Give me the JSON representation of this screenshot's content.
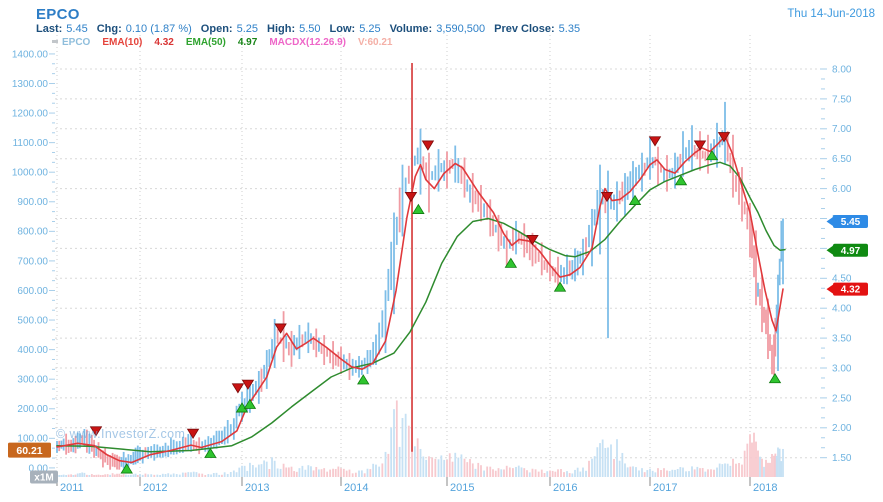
{
  "header": {
    "symbol": "EPCO",
    "date": "Thu 14-Jun-2018",
    "stats": [
      {
        "label": "Last:",
        "value": "5.45"
      },
      {
        "label": "Chg:",
        "value": "0.10 (1.87 %)"
      },
      {
        "label": "Open:",
        "value": "5.25"
      },
      {
        "label": "High:",
        "value": "5.50"
      },
      {
        "label": "Low:",
        "value": "5.25"
      },
      {
        "label": "Volume:",
        "value": "3,590,500"
      },
      {
        "label": "Prev Close:",
        "value": "5.35"
      }
    ],
    "legend": [
      {
        "text": "EPCO",
        "color": "#8fbedc"
      },
      {
        "text": "EMA(10)",
        "color": "#e5443c"
      },
      {
        "text": "4.32",
        "color": "#d93434"
      },
      {
        "text": "EMA(50)",
        "color": "#2fa32f"
      },
      {
        "text": "4.97",
        "color": "#168316"
      },
      {
        "text": "MACDX(12.26.9)",
        "color": "#ee66c8"
      },
      {
        "text": "V:60.21",
        "color": "#f4afa6"
      }
    ]
  },
  "watermark": "© www.InvestorZ.com",
  "colors": {
    "up": "#7ebee8",
    "down": "#f09ba3",
    "forced_red": "#d94b4b",
    "ema10": "#e0393c",
    "ema50": "#2e8b2e",
    "vol_up": "#c6e1f4",
    "vol_down": "#f7c9ce",
    "grid": "#d8d8d8",
    "vgrid": "#cfcfcf",
    "tick": "#a9cfea",
    "axis_text": "#6fb3e0",
    "year_text": "#55a4dc",
    "badge_last": "#2e8be6",
    "badge_ema50": "#0f8a12",
    "badge_ema10": "#e31212",
    "badge_left": "#c8671e",
    "badge_unit": "#a7b1bb",
    "buy": "#2fc42f",
    "buy_edge": "#0e7a0e",
    "sell": "#c81414",
    "sell_edge": "#7a0a0a"
  },
  "chart_data": {
    "type": "candlestick",
    "symbol": "EPCO",
    "x_axis": {
      "tick_labels": [
        "2011",
        "2012",
        "2013",
        "2014",
        "2015",
        "2016",
        "2017",
        "2018"
      ]
    },
    "right_axis": {
      "min": 1.5,
      "max": 8.0,
      "step": 0.5
    },
    "left_axis": {
      "min": 0,
      "max": 1400,
      "step": 100,
      "unit_badge": "x1M"
    },
    "badges": {
      "last": {
        "value": "5.45",
        "price": 5.45
      },
      "ema50": {
        "value": "4.97",
        "price": 4.97
      },
      "ema10": {
        "value": "4.32",
        "price": 4.32
      },
      "left_indicator": {
        "value": "60.21",
        "axis_value": 60.21
      }
    },
    "bars": [
      [
        2011.0,
        1.58,
        1.78,
        1.7
      ],
      [
        2011.08,
        1.62,
        1.82,
        1.72
      ],
      [
        2011.17,
        1.6,
        1.8,
        1.68
      ],
      [
        2011.25,
        1.65,
        1.92,
        1.78
      ],
      [
        2011.33,
        1.68,
        1.98,
        1.82
      ],
      [
        2011.42,
        1.6,
        1.88,
        1.7
      ],
      [
        2011.5,
        1.5,
        1.76,
        1.58
      ],
      [
        2011.58,
        1.42,
        1.66,
        1.5
      ],
      [
        2011.67,
        1.35,
        1.58,
        1.45
      ],
      [
        2011.75,
        1.3,
        1.52,
        1.4
      ],
      [
        2011.83,
        1.28,
        1.5,
        1.42
      ],
      [
        2011.92,
        1.38,
        1.6,
        1.5
      ],
      [
        2012.0,
        1.45,
        1.68,
        1.55
      ],
      [
        2012.08,
        1.48,
        1.68,
        1.58
      ],
      [
        2012.17,
        1.5,
        1.72,
        1.6
      ],
      [
        2012.25,
        1.52,
        1.75,
        1.63
      ],
      [
        2012.33,
        1.55,
        1.8,
        1.66
      ],
      [
        2012.42,
        1.58,
        1.85,
        1.7
      ],
      [
        2012.5,
        1.6,
        1.92,
        1.74
      ],
      [
        2012.58,
        1.56,
        1.84,
        1.66
      ],
      [
        2012.67,
        1.58,
        1.86,
        1.72
      ],
      [
        2012.75,
        1.65,
        1.95,
        1.8
      ],
      [
        2012.83,
        1.72,
        2.02,
        1.88
      ],
      [
        2012.92,
        1.8,
        2.16,
        2.02
      ],
      [
        2013.0,
        2.1,
        2.6,
        2.4
      ],
      [
        2013.08,
        2.25,
        2.72,
        2.52
      ],
      [
        2013.17,
        2.4,
        2.95,
        2.7
      ],
      [
        2013.25,
        2.65,
        3.3,
        3.0
      ],
      [
        2013.33,
        3.0,
        3.82,
        3.5
      ],
      [
        2013.42,
        3.1,
        3.95,
        3.45
      ],
      [
        2013.5,
        3.02,
        3.62,
        3.3
      ],
      [
        2013.58,
        3.15,
        3.72,
        3.45
      ],
      [
        2013.67,
        3.25,
        3.76,
        3.52
      ],
      [
        2013.75,
        3.18,
        3.66,
        3.4
      ],
      [
        2013.83,
        3.05,
        3.55,
        3.28
      ],
      [
        2013.92,
        2.98,
        3.45,
        3.18
      ],
      [
        2014.0,
        2.9,
        3.36,
        3.1
      ],
      [
        2014.08,
        2.8,
        3.25,
        3.0
      ],
      [
        2014.17,
        2.84,
        3.2,
        3.02
      ],
      [
        2014.25,
        2.9,
        3.3,
        3.1
      ],
      [
        2014.33,
        3.05,
        3.56,
        3.3
      ],
      [
        2014.42,
        3.25,
        4.3,
        3.95
      ],
      [
        2014.5,
        3.9,
        5.6,
        5.1
      ],
      [
        2014.58,
        5.2,
        6.4,
        5.95
      ],
      [
        2014.67,
        1.6,
        8.1,
        6.4,
        "r"
      ],
      [
        2014.75,
        5.9,
        7.0,
        6.55
      ],
      [
        2014.83,
        5.6,
        6.6,
        6.15
      ],
      [
        2014.92,
        5.95,
        6.66,
        6.35
      ],
      [
        2015.0,
        6.0,
        6.62,
        6.3
      ],
      [
        2015.08,
        6.1,
        6.72,
        6.45
      ],
      [
        2015.17,
        5.85,
        6.52,
        6.1
      ],
      [
        2015.25,
        5.6,
        6.26,
        5.9
      ],
      [
        2015.33,
        5.45,
        6.06,
        5.75
      ],
      [
        2015.42,
        5.2,
        5.82,
        5.5
      ],
      [
        2015.5,
        4.95,
        5.56,
        5.25
      ],
      [
        2015.58,
        4.72,
        5.3,
        5.0
      ],
      [
        2015.67,
        4.9,
        5.46,
        5.2
      ],
      [
        2015.75,
        4.85,
        5.42,
        5.1
      ],
      [
        2015.83,
        4.7,
        5.26,
        4.95
      ],
      [
        2015.92,
        4.55,
        5.1,
        4.8
      ],
      [
        2016.0,
        4.45,
        4.96,
        4.65
      ],
      [
        2016.08,
        4.35,
        4.86,
        4.55
      ],
      [
        2016.17,
        4.4,
        4.9,
        4.62
      ],
      [
        2016.25,
        4.45,
        5.0,
        4.72
      ],
      [
        2016.33,
        4.55,
        5.16,
        4.88
      ],
      [
        2016.42,
        4.7,
        5.66,
        5.3
      ],
      [
        2016.5,
        4.9,
        6.4,
        5.95
      ],
      [
        2016.58,
        3.5,
        6.3,
        5.7,
        "b"
      ],
      [
        2016.67,
        5.45,
        6.12,
        5.82
      ],
      [
        2016.75,
        5.55,
        6.26,
        5.95
      ],
      [
        2016.83,
        5.75,
        6.46,
        6.12
      ],
      [
        2016.92,
        5.95,
        6.6,
        6.3
      ],
      [
        2017.0,
        6.15,
        6.86,
        6.5
      ],
      [
        2017.08,
        6.05,
        6.7,
        6.4
      ],
      [
        2017.17,
        5.95,
        6.56,
        6.2
      ],
      [
        2017.25,
        6.0,
        6.6,
        6.3
      ],
      [
        2017.33,
        6.2,
        6.96,
        6.55
      ],
      [
        2017.42,
        6.3,
        7.06,
        6.65
      ],
      [
        2017.5,
        6.3,
        6.96,
        6.6
      ],
      [
        2017.58,
        6.25,
        6.9,
        6.55
      ],
      [
        2017.67,
        6.35,
        7.1,
        6.75
      ],
      [
        2017.75,
        6.4,
        7.45,
        6.9
      ],
      [
        2017.83,
        5.85,
        6.9,
        6.25
      ],
      [
        2017.92,
        5.45,
        6.36,
        5.85
      ],
      [
        2018.0,
        4.85,
        5.76,
        5.3
      ],
      [
        2018.06,
        4.05,
        5.3,
        4.45
      ],
      [
        2018.12,
        3.6,
        4.56,
        4.05
      ],
      [
        2018.18,
        3.15,
        4.16,
        3.6
      ],
      [
        2018.24,
        2.88,
        3.56,
        3.05
      ],
      [
        2018.28,
        2.95,
        4.56,
        4.25
      ],
      [
        2018.33,
        4.4,
        5.5,
        5.45
      ]
    ],
    "volume": [
      10,
      8,
      9,
      12,
      14,
      10,
      8,
      9,
      13,
      11,
      8,
      9,
      10,
      9,
      8,
      10,
      12,
      15,
      16,
      12,
      10,
      14,
      16,
      22,
      38,
      48,
      42,
      52,
      55,
      45,
      35,
      30,
      40,
      34,
      30,
      28,
      30,
      25,
      22,
      28,
      42,
      85,
      230,
      200,
      165,
      95,
      70,
      60,
      58,
      82,
      62,
      46,
      40,
      35,
      30,
      38,
      34,
      30,
      28,
      25,
      22,
      26,
      20,
      24,
      32,
      62,
      115,
      100,
      128,
      46,
      36,
      30,
      28,
      30,
      22,
      24,
      32,
      36,
      30,
      26,
      32,
      46,
      62,
      42,
      145,
      120,
      62,
      48,
      72,
      100,
      95
    ],
    "ema10": [
      [
        2011.0,
        1.68
      ],
      [
        2011.25,
        1.74
      ],
      [
        2011.45,
        1.7
      ],
      [
        2011.6,
        1.55
      ],
      [
        2011.75,
        1.45
      ],
      [
        2011.9,
        1.42
      ],
      [
        2012.1,
        1.55
      ],
      [
        2012.3,
        1.62
      ],
      [
        2012.5,
        1.71
      ],
      [
        2012.6,
        1.67
      ],
      [
        2012.8,
        1.77
      ],
      [
        2012.95,
        1.95
      ],
      [
        2013.05,
        2.35
      ],
      [
        2013.15,
        2.6
      ],
      [
        2013.25,
        2.85
      ],
      [
        2013.35,
        3.35
      ],
      [
        2013.45,
        3.58
      ],
      [
        2013.55,
        3.32
      ],
      [
        2013.65,
        3.42
      ],
      [
        2013.72,
        3.5
      ],
      [
        2013.85,
        3.35
      ],
      [
        2014.0,
        3.15
      ],
      [
        2014.1,
        3.02
      ],
      [
        2014.2,
        2.98
      ],
      [
        2014.3,
        3.08
      ],
      [
        2014.42,
        3.45
      ],
      [
        2014.52,
        4.3
      ],
      [
        2014.62,
        5.5
      ],
      [
        2014.7,
        6.2
      ],
      [
        2014.75,
        6.4
      ],
      [
        2014.8,
        6.15
      ],
      [
        2014.88,
        6.0
      ],
      [
        2014.97,
        6.25
      ],
      [
        2015.08,
        6.42
      ],
      [
        2015.15,
        6.35
      ],
      [
        2015.3,
        5.95
      ],
      [
        2015.45,
        5.6
      ],
      [
        2015.55,
        5.25
      ],
      [
        2015.63,
        5.05
      ],
      [
        2015.7,
        5.15
      ],
      [
        2015.8,
        5.12
      ],
      [
        2015.9,
        4.95
      ],
      [
        2016.0,
        4.72
      ],
      [
        2016.1,
        4.52
      ],
      [
        2016.2,
        4.56
      ],
      [
        2016.3,
        4.68
      ],
      [
        2016.42,
        5.0
      ],
      [
        2016.5,
        5.7
      ],
      [
        2016.55,
        6.0
      ],
      [
        2016.62,
        5.8
      ],
      [
        2016.7,
        5.82
      ],
      [
        2016.8,
        5.95
      ],
      [
        2016.9,
        6.15
      ],
      [
        2017.0,
        6.4
      ],
      [
        2017.07,
        6.48
      ],
      [
        2017.15,
        6.32
      ],
      [
        2017.25,
        6.26
      ],
      [
        2017.35,
        6.45
      ],
      [
        2017.45,
        6.6
      ],
      [
        2017.52,
        6.68
      ],
      [
        2017.6,
        6.62
      ],
      [
        2017.68,
        6.75
      ],
      [
        2017.75,
        6.88
      ],
      [
        2017.82,
        6.6
      ],
      [
        2017.9,
        6.15
      ],
      [
        2018.0,
        5.6
      ],
      [
        2018.08,
        4.9
      ],
      [
        2018.15,
        4.3
      ],
      [
        2018.22,
        3.8
      ],
      [
        2018.26,
        3.62
      ],
      [
        2018.33,
        4.32
      ]
    ],
    "ema50": [
      [
        2011.0,
        1.7
      ],
      [
        2011.4,
        1.69
      ],
      [
        2011.8,
        1.64
      ],
      [
        2012.1,
        1.6
      ],
      [
        2012.5,
        1.62
      ],
      [
        2012.9,
        1.7
      ],
      [
        2013.1,
        1.85
      ],
      [
        2013.3,
        2.08
      ],
      [
        2013.5,
        2.35
      ],
      [
        2013.7,
        2.6
      ],
      [
        2013.9,
        2.85
      ],
      [
        2014.1,
        3.0
      ],
      [
        2014.3,
        3.08
      ],
      [
        2014.5,
        3.25
      ],
      [
        2014.65,
        3.6
      ],
      [
        2014.8,
        4.1
      ],
      [
        2014.95,
        4.75
      ],
      [
        2015.1,
        5.2
      ],
      [
        2015.25,
        5.45
      ],
      [
        2015.4,
        5.5
      ],
      [
        2015.55,
        5.42
      ],
      [
        2015.7,
        5.28
      ],
      [
        2015.85,
        5.12
      ],
      [
        2016.0,
        4.98
      ],
      [
        2016.15,
        4.88
      ],
      [
        2016.25,
        4.86
      ],
      [
        2016.4,
        4.95
      ],
      [
        2016.55,
        5.15
      ],
      [
        2016.7,
        5.45
      ],
      [
        2016.85,
        5.72
      ],
      [
        2017.0,
        5.98
      ],
      [
        2017.15,
        6.12
      ],
      [
        2017.3,
        6.22
      ],
      [
        2017.45,
        6.32
      ],
      [
        2017.6,
        6.4
      ],
      [
        2017.7,
        6.44
      ],
      [
        2017.8,
        6.38
      ],
      [
        2017.9,
        6.18
      ],
      [
        2018.0,
        5.85
      ],
      [
        2018.08,
        5.6
      ],
      [
        2018.16,
        5.3
      ],
      [
        2018.24,
        5.05
      ],
      [
        2018.3,
        4.97
      ],
      [
        2018.35,
        4.98
      ]
    ],
    "signals": {
      "sell": [
        [
          2011.47,
          1.9
        ],
        [
          2012.52,
          1.86
        ],
        [
          2012.96,
          2.62
        ],
        [
          2013.06,
          2.68
        ],
        [
          2013.39,
          3.62
        ],
        [
          2014.66,
          5.82
        ],
        [
          2014.82,
          6.68
        ],
        [
          2015.83,
          5.1
        ],
        [
          2016.57,
          5.82
        ],
        [
          2017.05,
          6.75
        ],
        [
          2017.5,
          6.68
        ],
        [
          2017.74,
          6.82
        ]
      ],
      "buy": [
        [
          2011.84,
          1.36
        ],
        [
          2012.69,
          1.62
        ],
        [
          2013.0,
          2.38
        ],
        [
          2013.08,
          2.44
        ],
        [
          2014.21,
          2.85
        ],
        [
          2014.73,
          5.7
        ],
        [
          2015.62,
          4.8
        ],
        [
          2016.1,
          4.4
        ],
        [
          2016.85,
          5.85
        ],
        [
          2017.31,
          6.18
        ],
        [
          2017.62,
          6.6
        ],
        [
          2018.25,
          2.87
        ]
      ]
    }
  }
}
